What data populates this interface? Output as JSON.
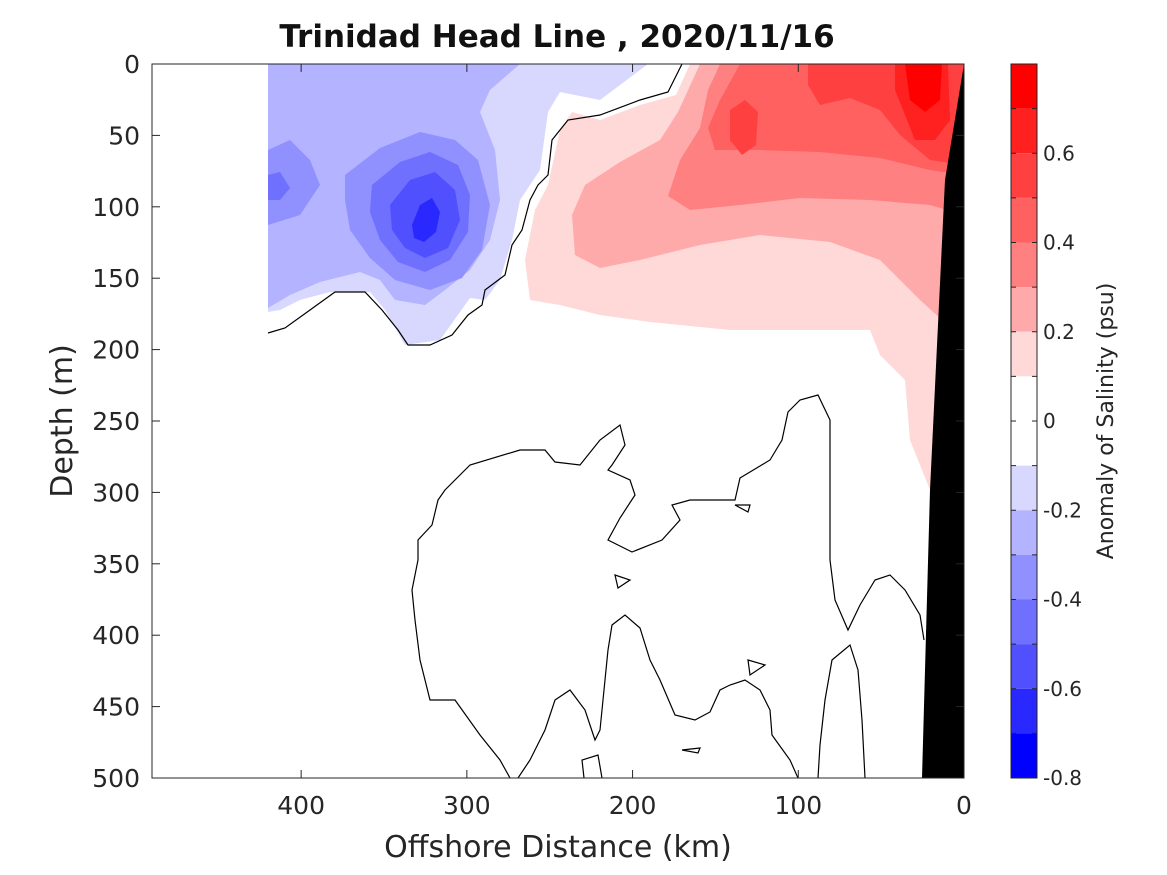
{
  "chart_data": {
    "type": "heatmap",
    "subtype": "filled-contour section",
    "title": "Trinidad Head Line , 2020/11/16",
    "xlabel": "Offshore Distance (km)",
    "ylabel": "Depth (m)",
    "x_ticks": [
      400,
      300,
      200,
      100,
      0
    ],
    "y_ticks": [
      0,
      50,
      100,
      150,
      200,
      250,
      300,
      350,
      400,
      450,
      500
    ],
    "xlim": [
      490,
      0
    ],
    "ylim": [
      0,
      500
    ],
    "x_reversed": true,
    "y_reversed": true,
    "colorbar": {
      "label": "Anomaly of Salinity (psu)",
      "range": [
        -0.8,
        0.8
      ],
      "level_step": 0.1,
      "tick_labels": [
        "0.6",
        "0.4",
        "0.2",
        "0",
        "-0.2",
        "-0.4",
        "-0.6",
        "-0.8"
      ],
      "tick_values": [
        0.6,
        0.4,
        0.2,
        0,
        -0.2,
        -0.4,
        -0.6,
        -0.8
      ],
      "bands": [
        {
          "from": 0.7,
          "to": 0.8,
          "color": "#ff0000"
        },
        {
          "from": 0.6,
          "to": 0.7,
          "color": "#ff2020"
        },
        {
          "from": 0.5,
          "to": 0.6,
          "color": "#ff4040"
        },
        {
          "from": 0.4,
          "to": 0.5,
          "color": "#ff6060"
        },
        {
          "from": 0.3,
          "to": 0.4,
          "color": "#ff8080"
        },
        {
          "from": 0.2,
          "to": 0.3,
          "color": "#ffaaaa"
        },
        {
          "from": 0.1,
          "to": 0.2,
          "color": "#ffd8d8"
        },
        {
          "from": -0.1,
          "to": 0.1,
          "color": "#ffffff"
        },
        {
          "from": -0.2,
          "to": -0.1,
          "color": "#d8d8ff"
        },
        {
          "from": -0.3,
          "to": -0.2,
          "color": "#b3b3ff"
        },
        {
          "from": -0.4,
          "to": -0.3,
          "color": "#9090ff"
        },
        {
          "from": -0.5,
          "to": -0.4,
          "color": "#7070ff"
        },
        {
          "from": -0.6,
          "to": -0.5,
          "color": "#5050ff"
        },
        {
          "from": -0.7,
          "to": -0.6,
          "color": "#2828ff"
        },
        {
          "from": -0.8,
          "to": -0.7,
          "color": "#0000ff"
        }
      ]
    },
    "features": [
      {
        "name": "fresh-anomaly-core",
        "offshore_km": 325,
        "depth_m": 105,
        "value": -0.6
      },
      {
        "name": "salty-anomaly-core",
        "offshore_km": 25,
        "depth_m": 25,
        "value": 0.7
      },
      {
        "name": "zero-contour",
        "value": 0
      },
      {
        "name": "bathymetry",
        "color": "#000000"
      }
    ],
    "grid": false,
    "legend": "colorbar-right"
  }
}
